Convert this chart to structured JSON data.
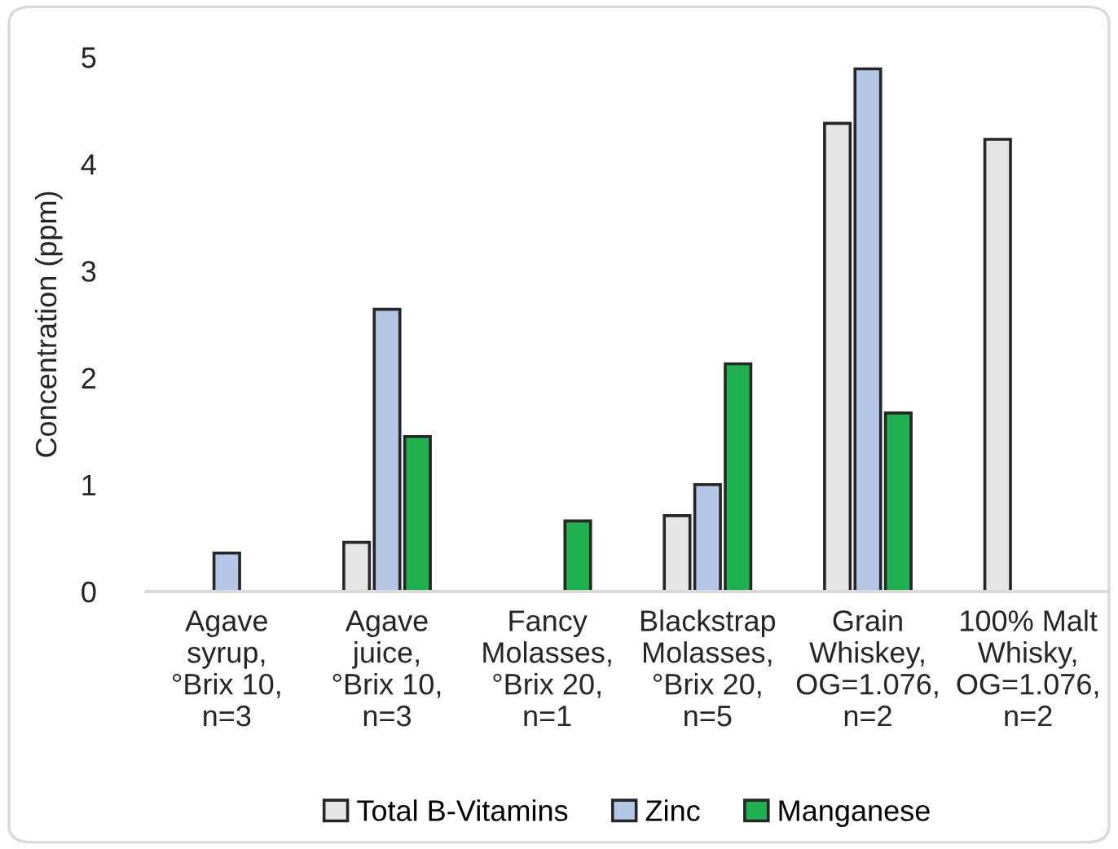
{
  "chart_data": {
    "type": "bar",
    "ylabel": "Concentration (ppm)",
    "categories": [
      "Agave\nsyrup,\n°Brix 10,\nn=3",
      "Agave\njuice,\n°Brix 10,\nn=3",
      "Fancy\nMolasses,\n°Brix 20,\nn=1",
      "Blackstrap\nMolasses,\n°Brix 20,\nn=5",
      "Grain\nWhiskey,\nOG=1.076,\nn=2",
      "100% Malt\nWhisky,\nOG=1.076,\nn=2"
    ],
    "series": [
      {
        "name": "Total B-Vitamins",
        "color": "#e7e6e6",
        "values": [
          null,
          0.46,
          null,
          0.71,
          4.38,
          4.23
        ]
      },
      {
        "name": "Zinc",
        "color": "#b4c7e7",
        "values": [
          0.36,
          2.64,
          null,
          1.0,
          4.89,
          null
        ]
      },
      {
        "name": "Manganese",
        "color": "#21b04f",
        "values": [
          null,
          1.45,
          0.66,
          2.13,
          1.67,
          null
        ]
      }
    ],
    "ylim": [
      0,
      5
    ],
    "yticks": [
      0,
      1,
      2,
      3,
      4,
      5
    ],
    "grid": false,
    "legend": "bottom"
  }
}
